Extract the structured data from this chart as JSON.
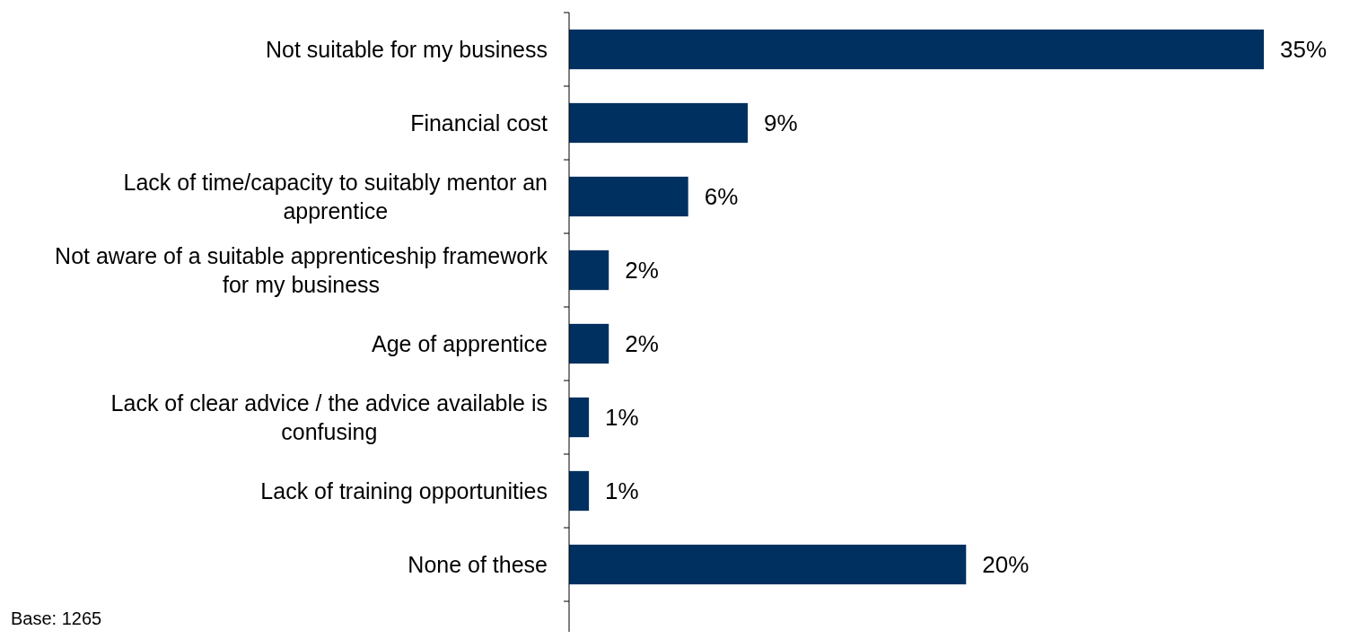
{
  "chart_data": {
    "type": "bar",
    "orientation": "horizontal",
    "categories": [
      "Not suitable for my business",
      "Financial cost",
      "Lack of time/capacity to suitably mentor an apprentice",
      "Not aware of a suitable apprenticeship framework for my business",
      "Age of apprentice",
      "Lack of clear advice / the advice available is confusing",
      "Lack of training opportunities",
      "None of these"
    ],
    "values": [
      35,
      9,
      6,
      2,
      2,
      1,
      1,
      20
    ],
    "value_labels": [
      "35%",
      "9%",
      "6%",
      "2%",
      "2%",
      "1%",
      "1%",
      "20%"
    ],
    "color": "#00305f",
    "annotations": [
      "Base: 1265"
    ]
  }
}
